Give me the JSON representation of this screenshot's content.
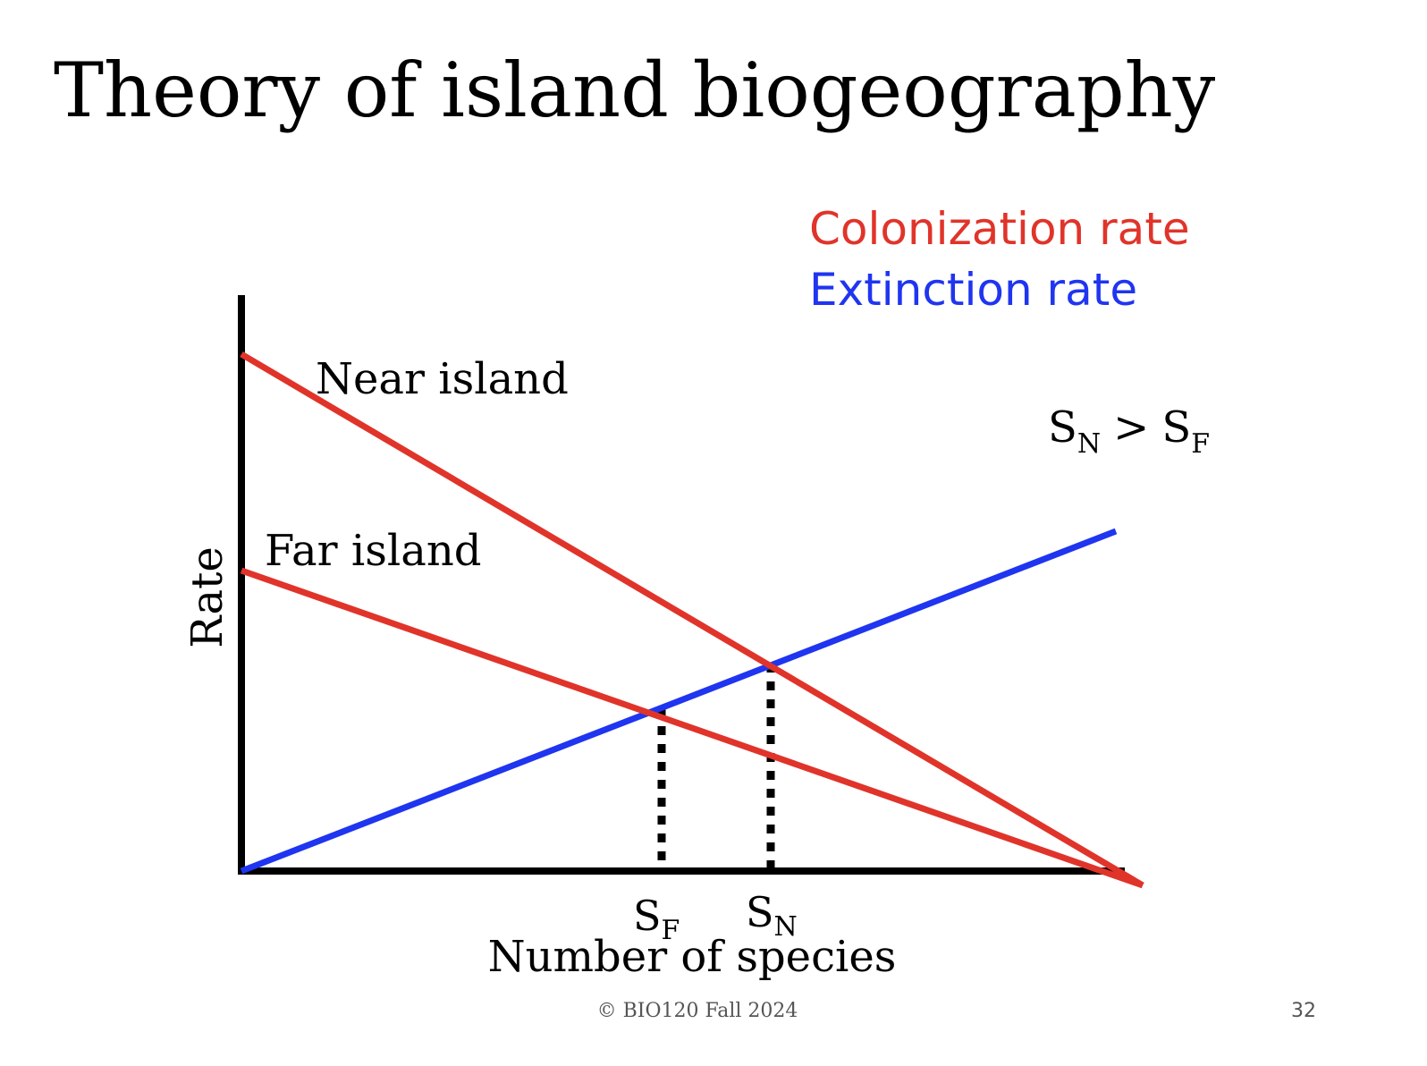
{
  "slide": {
    "title": "Theory of island biogeography",
    "footer": "© BIO120 Fall 2024",
    "page_number": "32"
  },
  "legend": {
    "colonization": "Colonization rate",
    "extinction": "Extinction rate"
  },
  "diagram": {
    "y_axis_label": "Rate",
    "x_axis_label": "Number of species",
    "near_island_label": "Near island",
    "far_island_label": "Far island",
    "comparison": {
      "lhs_base": "S",
      "lhs_sub": "N",
      "operator": ">",
      "rhs_base": "S",
      "rhs_sub": "F"
    },
    "marker_far": {
      "base": "S",
      "sub": "F"
    },
    "marker_near": {
      "base": "S",
      "sub": "N"
    }
  },
  "colors": {
    "colonization": "#e0342a",
    "extinction": "#1f35f0",
    "axes": "#000000"
  }
}
